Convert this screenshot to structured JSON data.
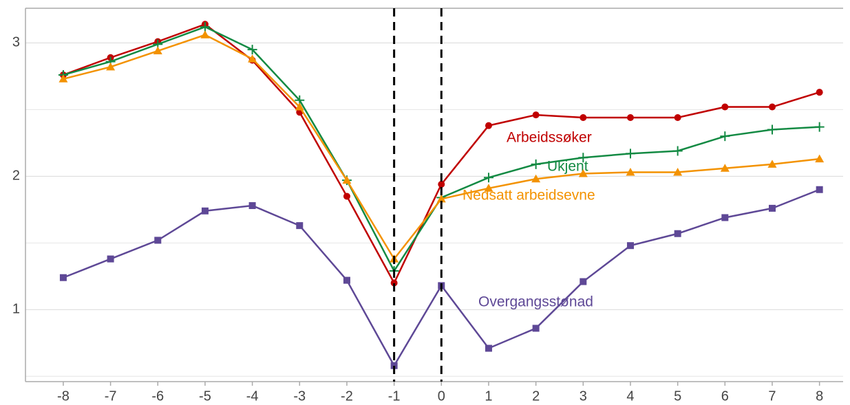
{
  "chart_data": {
    "type": "line",
    "x": [
      -8,
      -7,
      -6,
      -5,
      -4,
      -3,
      -2,
      -1,
      0,
      1,
      2,
      3,
      4,
      5,
      6,
      7,
      8
    ],
    "xlim": [
      -8.8,
      8.5
    ],
    "xticks": [
      -8,
      -7,
      -6,
      -5,
      -4,
      -3,
      -2,
      -1,
      0,
      1,
      2,
      3,
      4,
      5,
      6,
      7,
      8
    ],
    "ylim": [
      0.46,
      3.26
    ],
    "yticks": [
      1,
      2,
      3
    ],
    "yminor": [
      0.5,
      1.5,
      2.5
    ],
    "grid": true,
    "vlines": [
      -1,
      0
    ],
    "series": [
      {
        "name": "Arbeidssøker",
        "color": "#c00000",
        "marker": "circle",
        "values": [
          2.76,
          2.89,
          3.01,
          3.14,
          2.87,
          2.48,
          1.85,
          1.2,
          1.94,
          2.38,
          2.46,
          2.44,
          2.44,
          2.44,
          2.52,
          2.52,
          2.63
        ]
      },
      {
        "name": "Ukjent",
        "color": "#138a43",
        "marker": "plus",
        "values": [
          2.76,
          2.86,
          2.99,
          3.12,
          2.95,
          2.57,
          1.97,
          1.29,
          1.84,
          1.99,
          2.09,
          2.14,
          2.17,
          2.19,
          2.3,
          2.35,
          2.37
        ]
      },
      {
        "name": "Nedsatt arbeidsevne",
        "color": "#f39200",
        "marker": "triangle",
        "values": [
          2.73,
          2.82,
          2.94,
          3.06,
          2.88,
          2.52,
          1.97,
          1.38,
          1.83,
          1.91,
          1.98,
          2.02,
          2.03,
          2.03,
          2.06,
          2.09,
          2.13
        ]
      },
      {
        "name": "Overgangsstønad",
        "color": "#5e4896",
        "marker": "square",
        "values": [
          1.24,
          1.38,
          1.52,
          1.74,
          1.78,
          1.63,
          1.22,
          0.58,
          1.18,
          0.71,
          0.86,
          1.21,
          1.48,
          1.57,
          1.69,
          1.76,
          1.9
        ]
      }
    ]
  }
}
